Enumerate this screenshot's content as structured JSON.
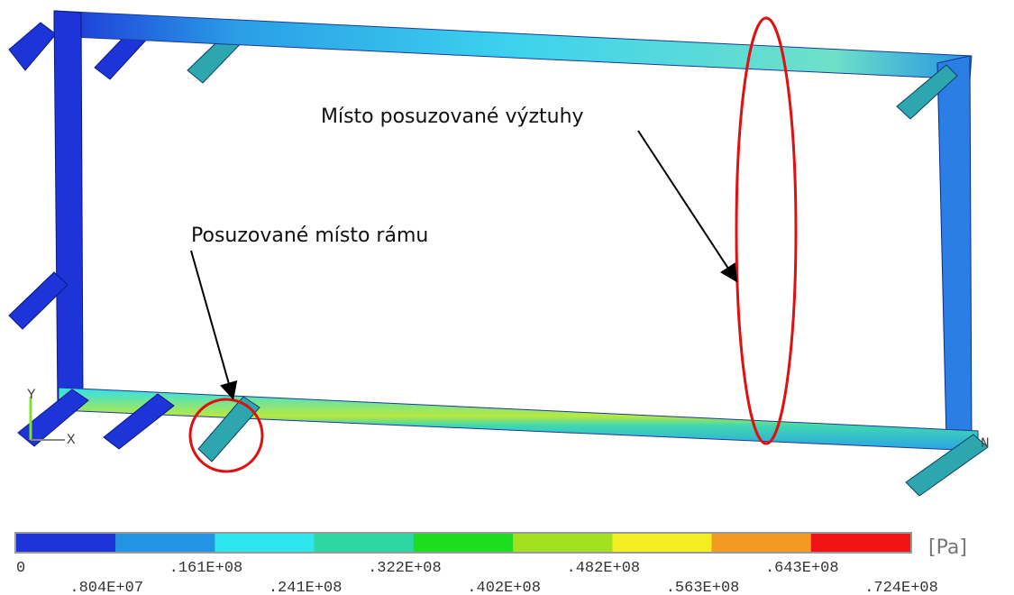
{
  "annotations": {
    "stiffener": "Místo posuzované výztuhy",
    "frame": "Posuzované místo rámu"
  },
  "axes": {
    "y": "Y",
    "x": "X",
    "node": "N"
  },
  "legend": {
    "unit": "[Pa]",
    "colors": [
      "#1c34d8",
      "#2294e2",
      "#2ee6f0",
      "#2ed6a2",
      "#1edc1e",
      "#a2e020",
      "#f2ee22",
      "#f29a22",
      "#f01414"
    ],
    "labels": [
      "0",
      ".804E+07",
      ".161E+08",
      ".241E+08",
      ".322E+08",
      ".402E+08",
      ".482E+08",
      ".563E+08",
      ".643E+08",
      ".724E+08"
    ]
  }
}
